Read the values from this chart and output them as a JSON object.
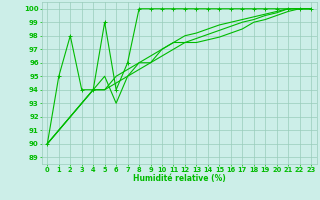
{
  "bg_color": "#cceee8",
  "grid_color": "#99ccbb",
  "line_color": "#00bb00",
  "xlabel": "Humidité relative (%)",
  "ylabel_ticks": [
    89,
    90,
    91,
    92,
    93,
    94,
    95,
    96,
    97,
    98,
    99,
    100
  ],
  "xticks": [
    0,
    1,
    2,
    3,
    4,
    5,
    6,
    7,
    8,
    9,
    10,
    11,
    12,
    13,
    14,
    15,
    16,
    17,
    18,
    19,
    20,
    21,
    22,
    23
  ],
  "ylim": [
    88.5,
    100.5
  ],
  "xlim": [
    -0.5,
    23.5
  ],
  "series": [
    {
      "x": [
        0,
        1,
        2,
        3,
        4,
        5,
        6,
        7,
        8,
        9,
        10,
        11,
        12,
        13,
        14,
        15,
        16,
        17,
        18,
        19,
        20,
        21,
        22,
        23
      ],
      "y": [
        90,
        95,
        98,
        94,
        94,
        99,
        94,
        96,
        100,
        100,
        100,
        100,
        100,
        100,
        100,
        100,
        100,
        100,
        100,
        100,
        100,
        100,
        100,
        100
      ],
      "marker": true
    },
    {
      "x": [
        0,
        1,
        2,
        3,
        4,
        5,
        6,
        7,
        8,
        9,
        10,
        11,
        12,
        13,
        14,
        15,
        16,
        17,
        18,
        19,
        20,
        21,
        22,
        23
      ],
      "y": [
        90,
        91,
        92,
        93,
        94,
        95,
        93,
        95,
        96,
        96,
        97,
        97.5,
        98,
        98.2,
        98.5,
        98.8,
        99,
        99.2,
        99.4,
        99.6,
        99.8,
        100,
        100,
        100
      ],
      "marker": false
    },
    {
      "x": [
        0,
        1,
        2,
        3,
        4,
        5,
        6,
        7,
        8,
        9,
        10,
        11,
        12,
        13,
        14,
        15,
        16,
        17,
        18,
        19,
        20,
        21,
        22,
        23
      ],
      "y": [
        90,
        91,
        92,
        93,
        94,
        94,
        94.5,
        95,
        95.5,
        96,
        96.5,
        97,
        97.5,
        97.8,
        98.1,
        98.4,
        98.7,
        99,
        99.2,
        99.5,
        99.7,
        100,
        100,
        100
      ],
      "marker": false
    },
    {
      "x": [
        0,
        1,
        2,
        3,
        4,
        5,
        6,
        7,
        8,
        9,
        10,
        11,
        12,
        13,
        14,
        15,
        16,
        17,
        18,
        19,
        20,
        21,
        22,
        23
      ],
      "y": [
        90,
        91,
        92,
        93,
        94,
        94,
        95,
        95.5,
        96,
        96.5,
        97,
        97.5,
        97.5,
        97.5,
        97.7,
        97.9,
        98.2,
        98.5,
        99,
        99.2,
        99.5,
        99.8,
        100,
        100
      ],
      "marker": false
    }
  ]
}
